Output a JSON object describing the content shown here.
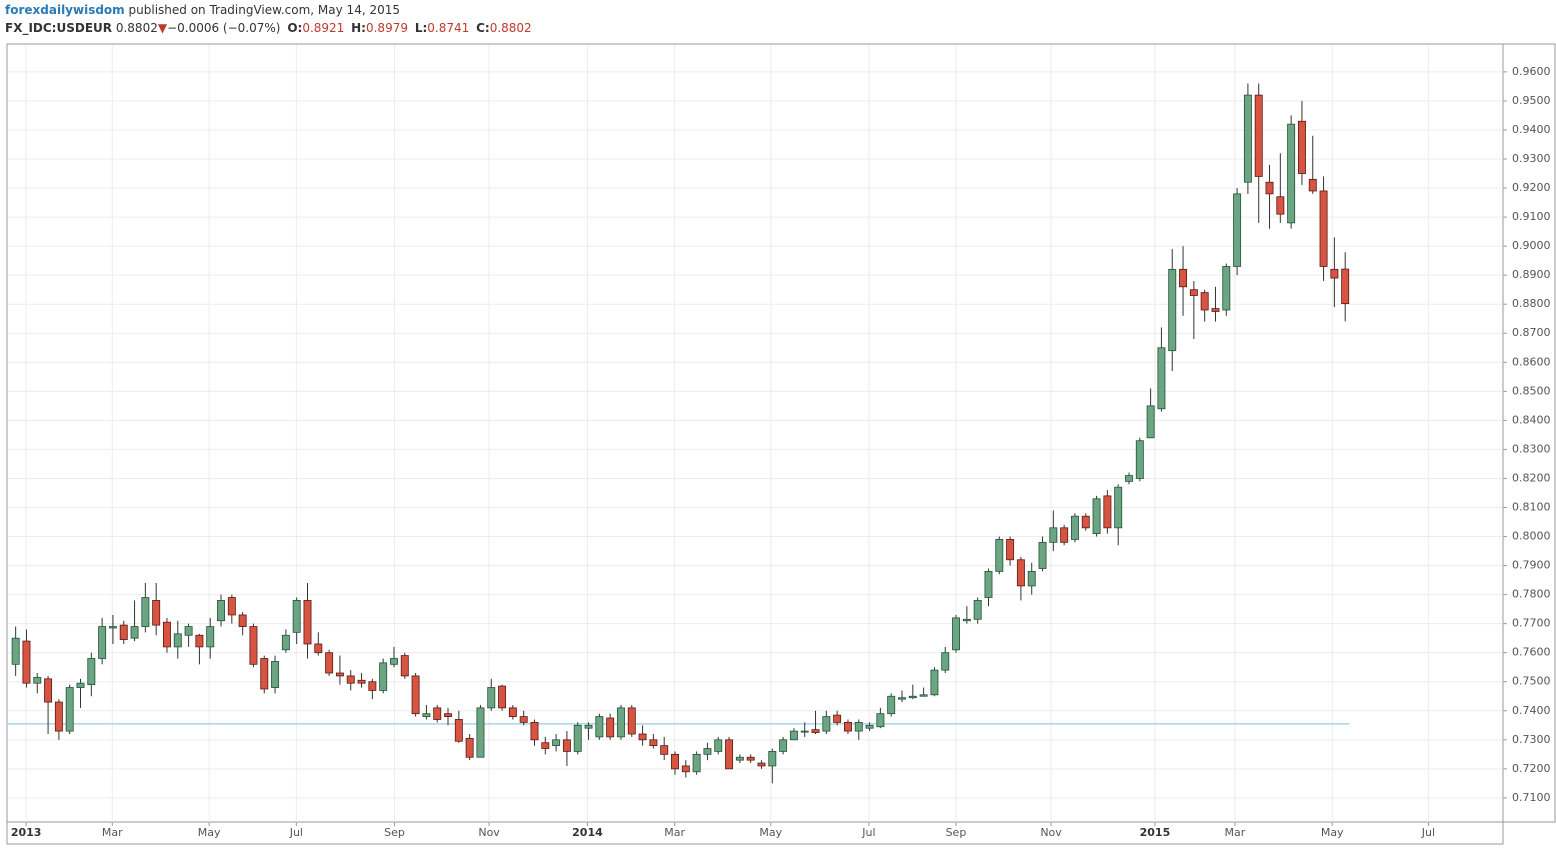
{
  "header": {
    "author": "forexdailywisdom",
    "published": "published on TradingView.com, May 14, 2015",
    "symbol": "FX_IDC:USDEUR",
    "change": "−0.0006 (−0.07%)",
    "ohlc_labels": [
      "O:",
      "H:",
      "L:",
      "C:"
    ]
  },
  "chart_data": {
    "type": "candlestick",
    "up_color": "#6ba583",
    "down_color": "#d75442",
    "up_border": "#225437",
    "down_border": "#5b1a13",
    "grid": true,
    "reference_line": {
      "value": 0.7355,
      "color": "#a9d3ea"
    },
    "categories": [
      null,
      null,
      null,
      null,
      null,
      null,
      null,
      null,
      null,
      null,
      null,
      null,
      null,
      null,
      null,
      null,
      null,
      null,
      null,
      null,
      null,
      null,
      null,
      null,
      null,
      null,
      null,
      null,
      null,
      null,
      null,
      null,
      null,
      null,
      null,
      null,
      null,
      null,
      null,
      null,
      null,
      null,
      null,
      null,
      null,
      null,
      null,
      null,
      null,
      null,
      null,
      null,
      null,
      null,
      null,
      null,
      null,
      null,
      null,
      null,
      null,
      null,
      null,
      null,
      null,
      null,
      null,
      null,
      null,
      null,
      null,
      null,
      null,
      null,
      null,
      null,
      null,
      null,
      null,
      null,
      null,
      null,
      null,
      null,
      null,
      null,
      null,
      null,
      null,
      null,
      null,
      null,
      null,
      null,
      null,
      null,
      null,
      null,
      null,
      null,
      null,
      null,
      null,
      null,
      null,
      null,
      null,
      null,
      null,
      null,
      null,
      null,
      null,
      null,
      null,
      null,
      null,
      null,
      null,
      null,
      null,
      null,
      null,
      null
    ],
    "open": [
      0.756,
      0.764,
      0.7495,
      0.751,
      0.743,
      0.733,
      0.748,
      0.749,
      0.758,
      0.7685,
      0.7695,
      0.765,
      0.769,
      0.778,
      0.7705,
      0.762,
      0.766,
      0.766,
      0.762,
      0.771,
      0.779,
      0.773,
      0.769,
      0.758,
      0.748,
      0.761,
      0.767,
      0.778,
      0.763,
      0.76,
      0.753,
      0.752,
      0.7505,
      0.75,
      0.747,
      0.756,
      0.759,
      0.752,
      0.738,
      0.741,
      0.739,
      0.737,
      0.7305,
      0.724,
      0.741,
      0.7485,
      0.741,
      0.738,
      0.736,
      0.729,
      0.728,
      0.73,
      0.726,
      0.734,
      0.731,
      0.7375,
      0.731,
      0.741,
      0.732,
      0.73,
      0.728,
      0.725,
      0.721,
      0.719,
      0.725,
      0.726,
      0.73,
      0.723,
      0.724,
      0.722,
      0.721,
      0.726,
      0.73,
      0.733,
      0.7335,
      0.733,
      0.7385,
      0.736,
      0.733,
      0.734,
      0.7345,
      0.739,
      0.744,
      0.7445,
      0.745,
      0.7455,
      0.754,
      0.761,
      0.771,
      0.7715,
      0.779,
      0.788,
      0.799,
      0.792,
      0.783,
      0.789,
      0.798,
      0.803,
      0.799,
      0.807,
      0.801,
      0.814,
      0.803,
      0.819,
      0.82,
      0.834,
      0.844,
      0.864,
      0.892,
      0.885,
      0.884,
      0.8785,
      0.878,
      0.893,
      0.922,
      0.952,
      0.922,
      0.917,
      0.908,
      0.943,
      0.923,
      0.919,
      0.892,
      0.8921
    ],
    "high": [
      0.769,
      0.768,
      0.753,
      0.752,
      0.744,
      0.749,
      0.751,
      0.76,
      0.772,
      0.773,
      0.771,
      0.778,
      0.784,
      0.784,
      0.772,
      0.771,
      0.77,
      0.7665,
      0.772,
      0.78,
      0.78,
      0.774,
      0.77,
      0.759,
      0.759,
      0.768,
      0.779,
      0.784,
      0.767,
      0.761,
      0.759,
      0.754,
      0.753,
      0.751,
      0.758,
      0.762,
      0.76,
      0.753,
      0.742,
      0.742,
      0.741,
      0.74,
      0.732,
      0.742,
      0.751,
      0.749,
      0.742,
      0.74,
      0.737,
      0.731,
      0.732,
      0.733,
      0.736,
      0.736,
      0.739,
      0.739,
      0.742,
      0.742,
      0.735,
      0.732,
      0.731,
      0.726,
      0.723,
      0.726,
      0.729,
      0.731,
      0.731,
      0.725,
      0.725,
      0.723,
      0.727,
      0.731,
      0.734,
      0.736,
      0.74,
      0.74,
      0.74,
      0.737,
      0.737,
      0.736,
      0.741,
      0.746,
      0.747,
      0.749,
      0.748,
      0.755,
      0.762,
      0.773,
      0.776,
      0.779,
      0.789,
      0.8,
      0.8,
      0.793,
      0.791,
      0.8,
      0.809,
      0.804,
      0.808,
      0.808,
      0.814,
      0.816,
      0.818,
      0.822,
      0.834,
      0.851,
      0.872,
      0.899,
      0.9,
      0.888,
      0.885,
      0.886,
      0.894,
      0.92,
      0.956,
      0.956,
      0.928,
      0.932,
      0.945,
      0.95,
      0.938,
      0.924,
      0.903,
      0.8979
    ],
    "low": [
      0.752,
      0.748,
      0.746,
      0.732,
      0.73,
      0.732,
      0.741,
      0.745,
      0.756,
      0.763,
      0.763,
      0.764,
      0.767,
      0.766,
      0.76,
      0.758,
      0.762,
      0.756,
      0.758,
      0.769,
      0.77,
      0.766,
      0.755,
      0.746,
      0.746,
      0.76,
      0.763,
      0.758,
      0.759,
      0.752,
      0.749,
      0.747,
      0.748,
      0.744,
      0.746,
      0.755,
      0.751,
      0.738,
      0.737,
      0.736,
      0.735,
      0.729,
      0.723,
      0.724,
      0.74,
      0.74,
      0.737,
      0.735,
      0.728,
      0.725,
      0.726,
      0.721,
      0.725,
      0.73,
      0.73,
      0.73,
      0.73,
      0.731,
      0.728,
      0.727,
      0.723,
      0.718,
      0.717,
      0.718,
      0.723,
      0.725,
      0.72,
      0.722,
      0.722,
      0.72,
      0.715,
      0.725,
      0.73,
      0.731,
      0.732,
      0.732,
      0.735,
      0.732,
      0.73,
      0.733,
      0.734,
      0.738,
      0.743,
      0.744,
      0.745,
      0.745,
      0.753,
      0.76,
      0.77,
      0.77,
      0.776,
      0.787,
      0.79,
      0.778,
      0.78,
      0.788,
      0.795,
      0.797,
      0.798,
      0.802,
      0.8,
      0.801,
      0.797,
      0.818,
      0.819,
      0.834,
      0.843,
      0.857,
      0.876,
      0.868,
      0.874,
      0.874,
      0.876,
      0.89,
      0.918,
      0.908,
      0.906,
      0.908,
      0.906,
      0.921,
      0.918,
      0.888,
      0.879,
      0.8741
    ],
    "close": [
      0.765,
      0.7495,
      0.7515,
      0.743,
      0.733,
      0.748,
      0.7495,
      0.758,
      0.769,
      0.769,
      0.7645,
      0.769,
      0.779,
      0.7695,
      0.762,
      0.7665,
      0.769,
      0.762,
      0.769,
      0.778,
      0.773,
      0.769,
      0.756,
      0.7475,
      0.757,
      0.766,
      0.778,
      0.763,
      0.76,
      0.753,
      0.752,
      0.7495,
      0.7495,
      0.747,
      0.7565,
      0.758,
      0.752,
      0.739,
      0.739,
      0.737,
      0.738,
      0.7295,
      0.724,
      0.741,
      0.748,
      0.741,
      0.738,
      0.736,
      0.73,
      0.727,
      0.73,
      0.726,
      0.735,
      0.735,
      0.738,
      0.731,
      0.741,
      0.732,
      0.73,
      0.728,
      0.725,
      0.72,
      0.719,
      0.725,
      0.727,
      0.73,
      0.72,
      0.724,
      0.723,
      0.721,
      0.726,
      0.73,
      0.733,
      0.733,
      0.7325,
      0.738,
      0.736,
      0.733,
      0.736,
      0.735,
      0.739,
      0.745,
      0.7445,
      0.745,
      0.7455,
      0.754,
      0.76,
      0.772,
      0.7715,
      0.778,
      0.788,
      0.799,
      0.792,
      0.783,
      0.788,
      0.798,
      0.803,
      0.798,
      0.807,
      0.803,
      0.813,
      0.803,
      0.817,
      0.821,
      0.833,
      0.845,
      0.865,
      0.892,
      0.886,
      0.883,
      0.878,
      0.8775,
      0.893,
      0.918,
      0.952,
      0.924,
      0.918,
      0.911,
      0.942,
      0.925,
      0.919,
      0.893,
      0.889,
      0.8802
    ],
    "xlim": [
      -0.8,
      137.6
    ],
    "xticks": [
      {
        "value": 0.97,
        "label": "2013"
      },
      {
        "value": 8.94,
        "label": "Mar"
      },
      {
        "value": 17.9,
        "label": "May"
      },
      {
        "value": 25.97,
        "label": "Jul"
      },
      {
        "value": 35.05,
        "label": "Sep"
      },
      {
        "value": 43.8,
        "label": "Nov"
      },
      {
        "value": 52.9,
        "label": "2014"
      },
      {
        "value": 60.97,
        "label": "Mar"
      },
      {
        "value": 69.86,
        "label": "May"
      },
      {
        "value": 78.94,
        "label": "Jul"
      },
      {
        "value": 86.99,
        "label": "Sep"
      },
      {
        "value": 95.79,
        "label": "Nov"
      },
      {
        "value": 105.4,
        "label": "2015"
      },
      {
        "value": 112.8,
        "label": "Mar"
      },
      {
        "value": 121.8,
        "label": "May"
      },
      {
        "value": 130.7,
        "label": "Jul"
      }
    ],
    "ylim": [
      0.7017,
      0.9696
    ],
    "yticks": [
      {
        "value": 0.71,
        "label": "0.7100"
      },
      {
        "value": 0.72,
        "label": "0.7200"
      },
      {
        "value": 0.73,
        "label": "0.7300"
      },
      {
        "value": 0.74,
        "label": "0.7400"
      },
      {
        "value": 0.75,
        "label": "0.7500"
      },
      {
        "value": 0.76,
        "label": "0.7600"
      },
      {
        "value": 0.77,
        "label": "0.7700"
      },
      {
        "value": 0.78,
        "label": "0.7800"
      },
      {
        "value": 0.79,
        "label": "0.7900"
      },
      {
        "value": 0.8,
        "label": "0.8000"
      },
      {
        "value": 0.81,
        "label": "0.8100"
      },
      {
        "value": 0.82,
        "label": "0.8200"
      },
      {
        "value": 0.83,
        "label": "0.8300"
      },
      {
        "value": 0.84,
        "label": "0.8400"
      },
      {
        "value": 0.85,
        "label": "0.8500"
      },
      {
        "value": 0.86,
        "label": "0.8600"
      },
      {
        "value": 0.87,
        "label": "0.8700"
      },
      {
        "value": 0.88,
        "label": "0.8800"
      },
      {
        "value": 0.89,
        "label": "0.8900"
      },
      {
        "value": 0.9,
        "label": "0.9000"
      },
      {
        "value": 0.91,
        "label": "0.9100"
      },
      {
        "value": 0.92,
        "label": "0.9200"
      },
      {
        "value": 0.93,
        "label": "0.9300"
      },
      {
        "value": 0.94,
        "label": "0.9400"
      },
      {
        "value": 0.95,
        "label": "0.9500"
      },
      {
        "value": 0.96,
        "label": "0.9600"
      }
    ]
  }
}
